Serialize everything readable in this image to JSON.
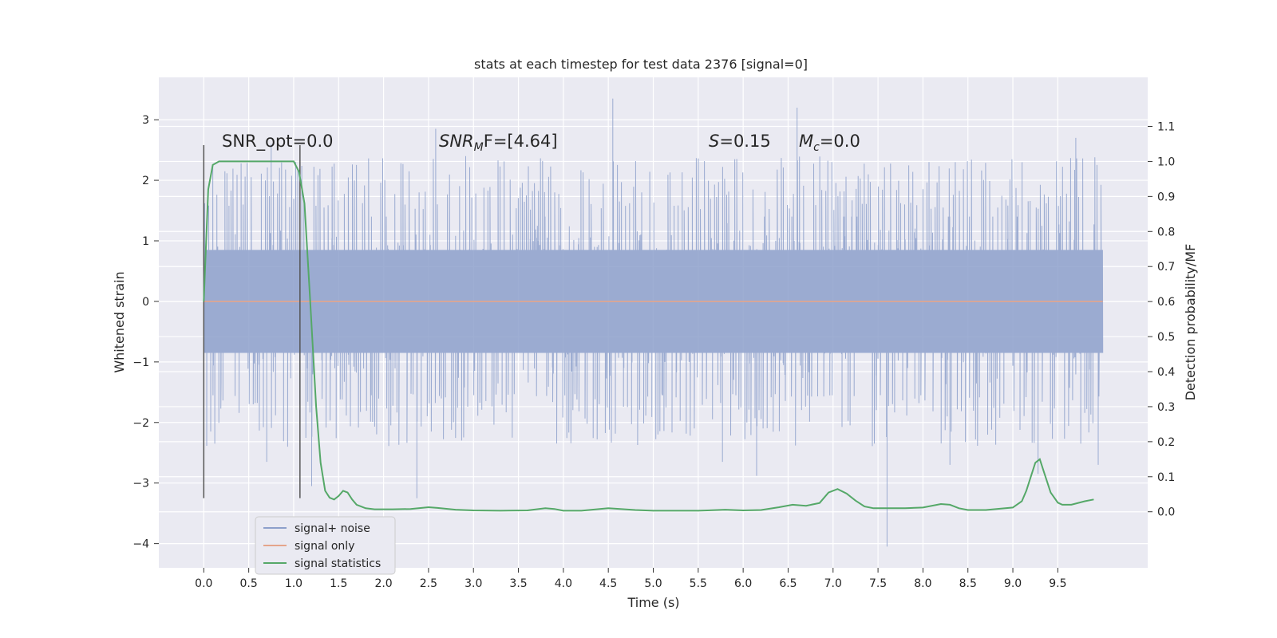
{
  "chart_data": {
    "type": "line",
    "title": "stats at each timestep for test data 2376 [signal=0]",
    "xlabel": "Time (s)",
    "ylabel": "Whitened strain",
    "y2label": "Detection probability/MF",
    "xlim": [
      -0.5,
      10.5
    ],
    "ylim": [
      -4.4,
      3.7
    ],
    "y2lim": [
      -0.16,
      1.24
    ],
    "xticks": [
      0.0,
      0.5,
      1.0,
      1.5,
      2.0,
      2.5,
      3.0,
      3.5,
      4.0,
      4.5,
      5.0,
      5.5,
      6.0,
      6.5,
      7.0,
      7.5,
      8.0,
      8.5,
      9.0,
      9.5
    ],
    "xtick_labels": [
      "0.0",
      "0.5",
      "1.0",
      "1.5",
      "2.0",
      "2.5",
      "3.0",
      "3.5",
      "4.0",
      "4.5",
      "5.0",
      "5.5",
      "6.0",
      "6.5",
      "7.0",
      "7.5",
      "8.0",
      "8.5",
      "9.0",
      "9.5"
    ],
    "yticks": [
      -4,
      -3,
      -2,
      -1,
      0,
      1,
      2,
      3
    ],
    "ytick_labels": [
      "−4",
      "−3",
      "−2",
      "−1",
      "0",
      "1",
      "2",
      "3"
    ],
    "y2ticks": [
      0.0,
      0.1,
      0.2,
      0.3,
      0.4,
      0.5,
      0.6,
      0.7,
      0.8,
      0.9,
      1.0,
      1.1
    ],
    "y2tick_labels": [
      "0.0",
      "0.1",
      "0.2",
      "0.3",
      "0.4",
      "0.5",
      "0.6",
      "0.7",
      "0.8",
      "0.9",
      "1.0",
      "1.1"
    ],
    "grid": true,
    "legend_placement": "lower-left",
    "annotations": {
      "snr_opt": "SNR_opt=0.0",
      "snr_mf_sym": "SNR",
      "snr_mf_sub": "M",
      "snr_mf_rest": "F=[4.64]",
      "s_sym": "S",
      "s_rest": "=0.15",
      "mc_sym": "M",
      "mc_sub": "c",
      "mc_rest": "=0.0"
    },
    "series": [
      {
        "name": "signal+ noise",
        "color": "#8da0cb",
        "axis": "left",
        "t_range": [
          0.0,
          10.0
        ],
        "core_amplitude": 0.85,
        "envelope_upper": 1.4,
        "envelope_lower": -1.55,
        "peaks": [
          [
            4.55,
            3.35
          ],
          [
            6.6,
            3.2
          ],
          [
            0.75,
            2.6
          ],
          [
            2.58,
            2.85
          ],
          [
            9.7,
            2.7
          ],
          [
            7.6,
            -4.05
          ],
          [
            2.37,
            -3.25
          ],
          [
            9.28,
            -2.85
          ],
          [
            1.2,
            -3.05
          ],
          [
            5.77,
            -2.65
          ],
          [
            6.15,
            -2.88
          ],
          [
            8.3,
            -2.7
          ],
          [
            9.95,
            -2.7
          ],
          [
            0.7,
            -2.65
          ]
        ]
      },
      {
        "name": "signal only",
        "color": "#e5a58b",
        "axis": "left",
        "x": [
          0.0,
          10.0
        ],
        "values": [
          0.0,
          0.0
        ]
      },
      {
        "name": "signal statistics",
        "color": "#55a868",
        "axis": "right",
        "x": [
          0.0,
          0.05,
          0.1,
          0.17,
          0.3,
          0.5,
          0.7,
          0.9,
          1.0,
          1.06,
          1.12,
          1.18,
          1.25,
          1.3,
          1.35,
          1.4,
          1.45,
          1.5,
          1.55,
          1.6,
          1.65,
          1.7,
          1.8,
          1.9,
          2.1,
          2.3,
          2.5,
          2.6,
          2.8,
          3.0,
          3.3,
          3.6,
          3.8,
          3.9,
          4.0,
          4.2,
          4.5,
          4.8,
          5.0,
          5.5,
          5.8,
          6.0,
          6.2,
          6.4,
          6.55,
          6.7,
          6.85,
          6.95,
          7.05,
          7.15,
          7.25,
          7.35,
          7.45,
          7.6,
          7.8,
          8.0,
          8.2,
          8.3,
          8.4,
          8.5,
          8.7,
          9.0,
          9.1,
          9.15,
          9.25,
          9.3,
          9.35,
          9.42,
          9.5,
          9.55,
          9.65,
          9.8,
          9.9
        ],
        "values": [
          0.6,
          0.92,
          0.99,
          1.0,
          1.0,
          1.0,
          1.0,
          1.0,
          1.0,
          0.97,
          0.88,
          0.62,
          0.3,
          0.14,
          0.06,
          0.04,
          0.035,
          0.045,
          0.06,
          0.055,
          0.035,
          0.02,
          0.01,
          0.007,
          0.007,
          0.008,
          0.013,
          0.011,
          0.006,
          0.004,
          0.003,
          0.004,
          0.01,
          0.008,
          0.003,
          0.003,
          0.01,
          0.005,
          0.003,
          0.003,
          0.006,
          0.004,
          0.005,
          0.013,
          0.02,
          0.017,
          0.025,
          0.055,
          0.065,
          0.052,
          0.032,
          0.015,
          0.01,
          0.01,
          0.01,
          0.012,
          0.022,
          0.02,
          0.01,
          0.005,
          0.005,
          0.012,
          0.03,
          0.06,
          0.14,
          0.15,
          0.11,
          0.055,
          0.026,
          0.02,
          0.02,
          0.03,
          0.035
        ]
      }
    ],
    "markers": [
      {
        "x": 0.0,
        "y_range": [
          -3.25,
          2.58
        ],
        "color": "#555555"
      },
      {
        "x": 1.07,
        "y_range": [
          -3.25,
          2.58
        ],
        "color": "#555555"
      }
    ]
  }
}
